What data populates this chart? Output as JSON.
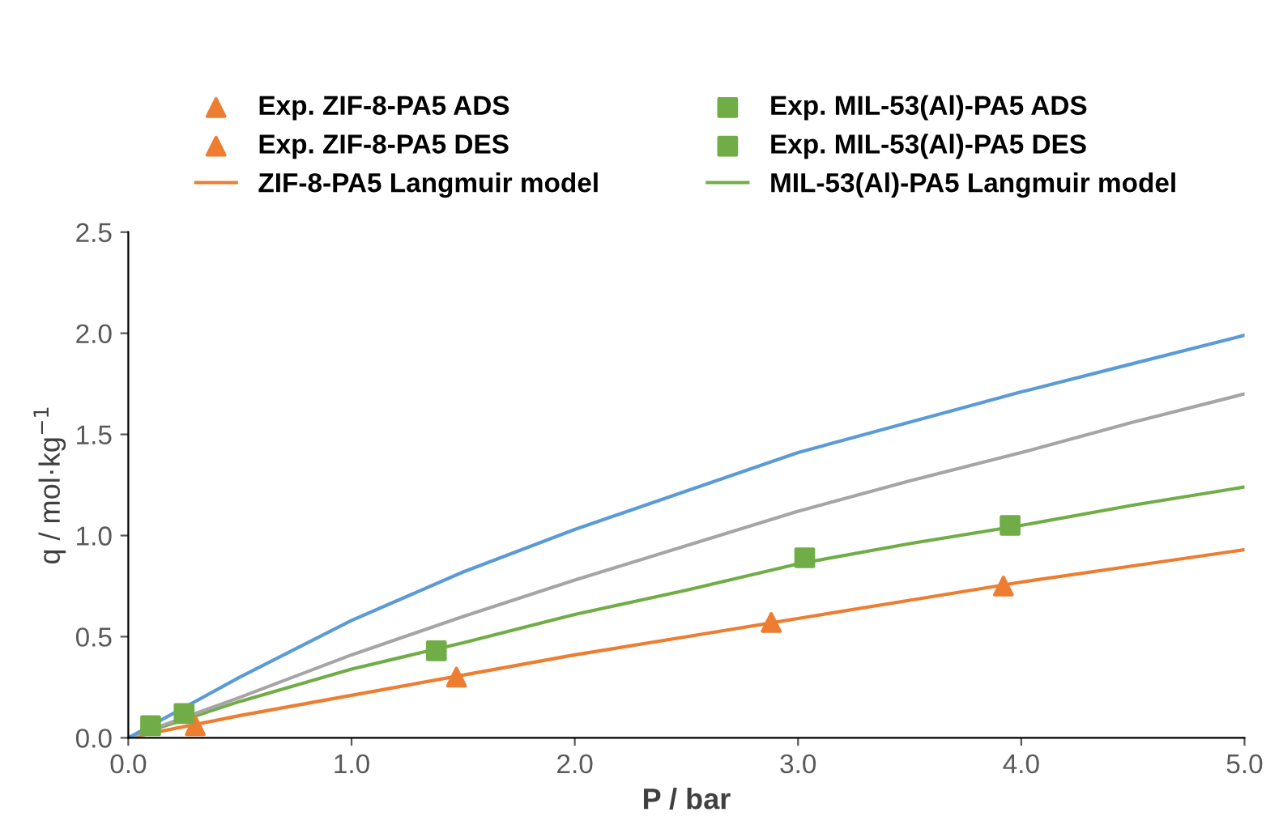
{
  "chart_data": {
    "type": "line",
    "xlabel": "P / bar",
    "ylabel": "q / mol·kg$^{−1}$",
    "xlim": [
      0,
      5
    ],
    "xticks": [
      {
        "value": 0,
        "label": "0.0"
      },
      {
        "value": 1,
        "label": "1.0"
      },
      {
        "value": 2,
        "label": "2.0"
      },
      {
        "value": 3,
        "label": "3.0"
      },
      {
        "value": 4,
        "label": "4.0"
      },
      {
        "value": 5,
        "label": "5.0"
      }
    ],
    "ylim": [
      0,
      2.5
    ],
    "yticks": [
      {
        "value": 0,
        "label": "0.0"
      },
      {
        "value": 0.5,
        "label": "0.5"
      },
      {
        "value": 1,
        "label": "1.0"
      },
      {
        "value": 1.5,
        "label": "1.5"
      },
      {
        "value": 2,
        "label": "2.0"
      },
      {
        "value": 2.5,
        "label": "2.5"
      }
    ],
    "grid": false,
    "legend": "top",
    "series": [
      {
        "name": "Exp. ZIF-8-PA5 ADS",
        "type": "scatter",
        "marker": "triangle",
        "color": "#ed7d31",
        "x": [
          0.3,
          3.92
        ],
        "values": [
          0.06,
          0.75
        ]
      },
      {
        "name": "Exp. ZIF-8-PA5 DES",
        "type": "scatter",
        "marker": "triangle",
        "color": "#ed7d31",
        "x": [
          1.47,
          2.88
        ],
        "values": [
          0.3,
          0.57
        ]
      },
      {
        "name": "ZIF-8-PA5 Langmuir model",
        "color": "#ed7d31",
        "x": [
          0,
          0.5,
          1,
          1.5,
          2,
          2.5,
          3,
          3.5,
          4,
          4.5,
          5
        ],
        "values": [
          0,
          0.11,
          0.21,
          0.31,
          0.41,
          0.5,
          0.59,
          0.68,
          0.77,
          0.85,
          0.93
        ]
      },
      {
        "name": "Exp. MIL-53(Al)-PA5 ADS",
        "type": "scatter",
        "marker": "square",
        "color": "#70ad47",
        "x": [
          0.25,
          1.38,
          3.95
        ],
        "values": [
          0.12,
          0.43,
          1.05
        ]
      },
      {
        "name": "Exp. MIL-53(Al)-PA5 DES",
        "type": "scatter",
        "marker": "square",
        "color": "#70ad47",
        "x": [
          0.1,
          3.03
        ],
        "values": [
          0.06,
          0.89
        ]
      },
      {
        "name": "MIL-53(Al)-PA5 Langmuir model",
        "color": "#70ad47",
        "x": [
          0,
          0.5,
          1,
          1.5,
          2,
          2.5,
          3,
          3.5,
          4,
          4.5,
          5
        ],
        "values": [
          0,
          0.18,
          0.34,
          0.47,
          0.61,
          0.73,
          0.86,
          0.96,
          1.05,
          1.15,
          1.24
        ]
      },
      {
        "color": "#a5a5a5",
        "x": [
          0,
          0.5,
          1,
          1.5,
          2,
          2.5,
          3,
          3.5,
          4,
          4.5,
          5
        ],
        "values": [
          0,
          0.2,
          0.41,
          0.6,
          0.78,
          0.95,
          1.12,
          1.27,
          1.41,
          1.56,
          1.7
        ]
      },
      {
        "color": "#5b9bd5",
        "x": [
          0,
          0.5,
          1,
          1.5,
          2,
          2.5,
          3,
          3.5,
          4,
          4.5,
          5
        ],
        "values": [
          0,
          0.3,
          0.58,
          0.82,
          1.03,
          1.22,
          1.41,
          1.56,
          1.71,
          1.85,
          1.99
        ]
      }
    ]
  }
}
